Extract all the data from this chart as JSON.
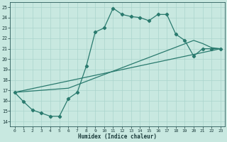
{
  "xlabel": "Humidex (Indice chaleur)",
  "ylabel": "",
  "bg_color": "#c8e8e0",
  "grid_color": "#aad4cc",
  "line_color": "#2a7a6e",
  "xlim": [
    -0.5,
    23.5
  ],
  "ylim": [
    13.5,
    25.5
  ],
  "xticks": [
    0,
    1,
    2,
    3,
    4,
    5,
    6,
    7,
    8,
    9,
    10,
    11,
    12,
    13,
    14,
    15,
    16,
    17,
    18,
    19,
    20,
    21,
    22,
    23
  ],
  "yticks": [
    14,
    15,
    16,
    17,
    18,
    19,
    20,
    21,
    22,
    23,
    24,
    25
  ],
  "line1_x": [
    0,
    1,
    2,
    3,
    4,
    5,
    6,
    7,
    8,
    9,
    10,
    11,
    12,
    13,
    14,
    15,
    16,
    17,
    18,
    19,
    20,
    21,
    22,
    23
  ],
  "line1_y": [
    16.8,
    15.9,
    15.1,
    14.8,
    14.5,
    14.5,
    16.2,
    16.8,
    19.3,
    22.6,
    23.0,
    24.9,
    24.3,
    24.1,
    24.0,
    23.7,
    24.3,
    24.3,
    22.4,
    21.8,
    20.3,
    21.0,
    21.0,
    21.0
  ],
  "line2_x": [
    0,
    23
  ],
  "line2_y": [
    16.8,
    21.0
  ],
  "line3_x": [
    0,
    6,
    20,
    21,
    22,
    23
  ],
  "line3_y": [
    16.8,
    17.2,
    21.8,
    21.5,
    21.1,
    21.0
  ]
}
